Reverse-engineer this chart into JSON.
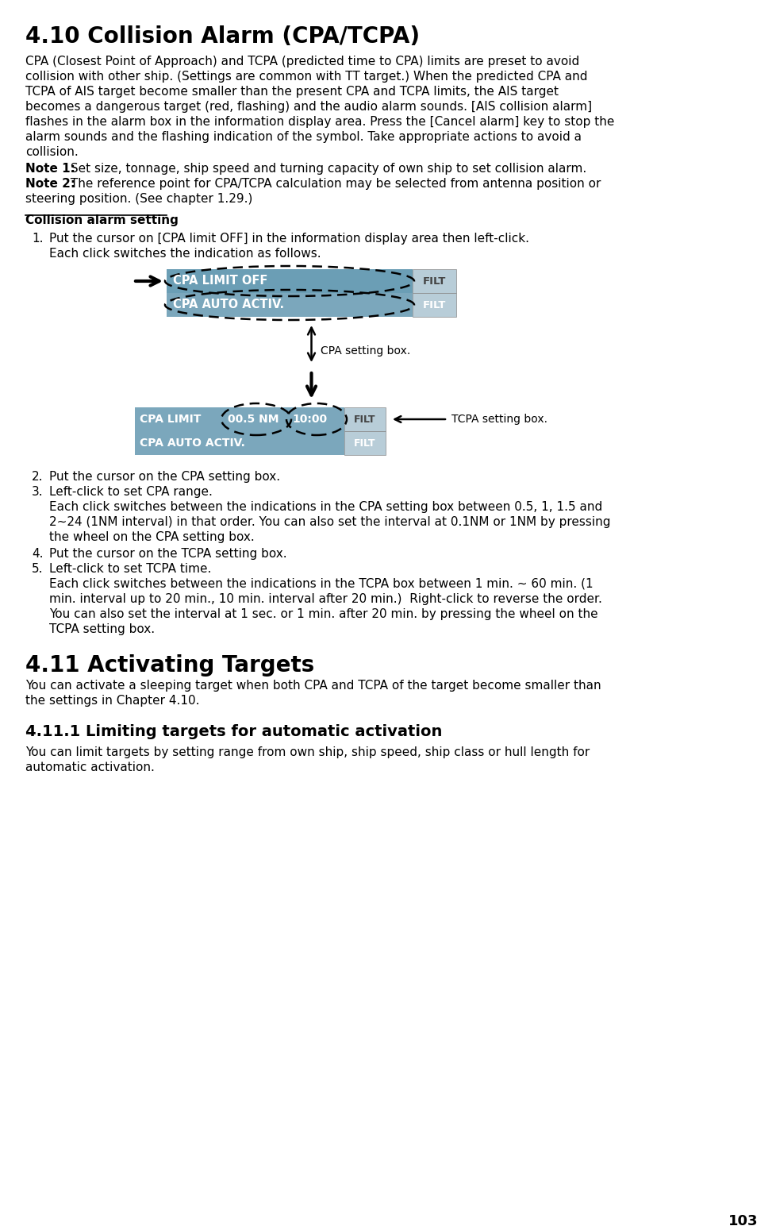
{
  "bg_color": "#ffffff",
  "panel_color": "#7ba7bc",
  "panel_color_light": "#6d9ab0",
  "filt_bg_dark": "#b8cdd8",
  "filt_bg_light": "#d8e8f0",
  "page_number": "103",
  "title": "4.10 Collision Alarm (CPA/TCPA)",
  "para1_lines": [
    "CPA (Closest Point of Approach) and TCPA (predicted time to CPA) limits are preset to avoid",
    "collision with other ship. (Settings are common with TT target.) When the predicted CPA and",
    "TCPA of AIS target become smaller than the present CPA and TCPA limits, the AIS target",
    "becomes a dangerous target (red, flashing) and the audio alarm sounds. [AIS collision alarm]",
    "flashes in the alarm box in the information display area. Press the [Cancel alarm] key to stop the",
    "alarm sounds and the flashing indication of the symbol. Take appropriate actions to avoid a",
    "collision."
  ],
  "note1_bold": "Note 1:",
  "note1_text": " Set size, tonnage, ship speed and turning capacity of own ship to set collision alarm.",
  "note2_bold": "Note 2:",
  "note2_text": " The reference point for CPA/TCPA calculation may be selected from antenna position or",
  "note2_cont": "steering position. (See chapter 1.29.)",
  "collision_setting_title": "Collision alarm setting",
  "step1a": "Put the cursor on [CPA limit OFF] in the information display area then left-click.",
  "step1b": "Each click switches the indication as follows.",
  "panel1_row1": "CPA LIMIT OFF",
  "panel1_row2": "CPA AUTO ACTIV.",
  "filt_label": "FILT",
  "cpa_setting_label": "CPA setting box.",
  "panel2_col1": "CPA LIMIT",
  "panel2_col2": "00.5 NM",
  "panel2_col3": "10:00",
  "panel2_row2": "CPA AUTO ACTIV.",
  "tcpa_label": "TCPA setting box.",
  "step2": "Put the cursor on the CPA setting box.",
  "step3": "Left-click to set CPA range.",
  "step3_text_lines": [
    "Each click switches between the indications in the CPA setting box between 0.5, 1, 1.5 and",
    "2~24 (1NM interval) in that order. You can also set the interval at 0.1NM or 1NM by pressing",
    "the wheel on the CPA setting box."
  ],
  "step4": "Put the cursor on the TCPA setting box.",
  "step5": "Left-click to set TCPA time.",
  "step5_text_lines": [
    "Each click switches between the indications in the TCPA box between 1 min. ~ 60 min. (1",
    "min. interval up to 20 min., 10 min. interval after 20 min.)  Right-click to reverse the order.",
    "You can also set the interval at 1 sec. or 1 min. after 20 min. by pressing the wheel on the",
    "TCPA setting box."
  ],
  "sec411_title": "4.11 Activating Targets",
  "sec411_text_lines": [
    "You can activate a sleeping target when both CPA and TCPA of the target become smaller than",
    "the settings in Chapter 4.10."
  ],
  "sec4111_title": "4.11.1 Limiting targets for automatic activation",
  "sec4111_text_lines": [
    "You can limit targets by setting range from own ship, ship speed, ship class or hull length for",
    "automatic activation."
  ]
}
